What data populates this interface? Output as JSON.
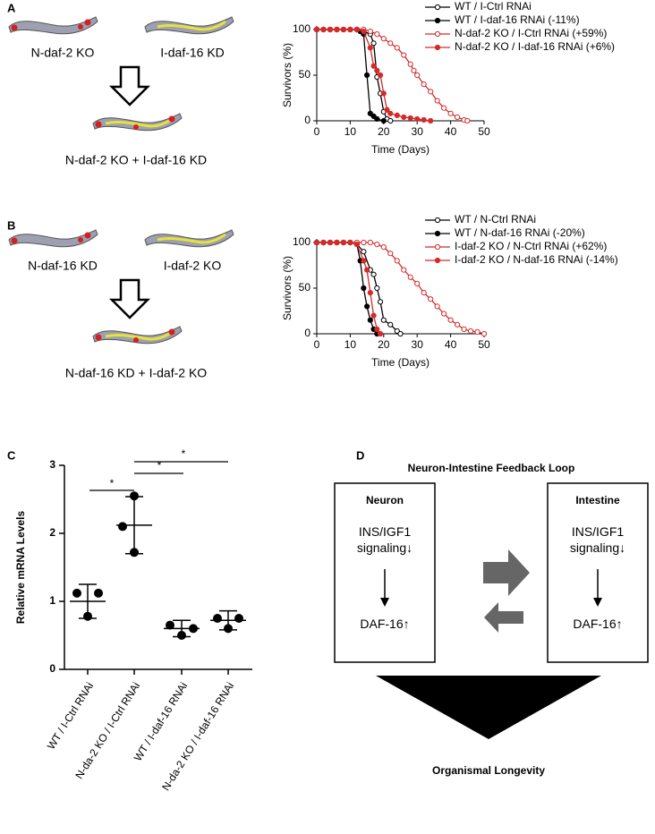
{
  "schematic_A": {
    "panel_label": "A",
    "left": "N-daf-2 KO",
    "right": "I-daf-16 KD",
    "combined": "N-daf-2 KO + I-daf-16 KD"
  },
  "schematic_B": {
    "panel_label": "B",
    "left": "N-daf-16 KD",
    "right": "I-daf-2 KO",
    "combined": "N-daf-16 KD + I-daf-2 KO"
  },
  "chart_data": [
    {
      "type": "survival",
      "xlabel": "Time (Days)",
      "ylabel": "Survivors (%)",
      "xlim": [
        0,
        50
      ],
      "xticks": [
        0,
        10,
        20,
        30,
        40,
        50
      ],
      "ylim": [
        0,
        100
      ],
      "yticks": [
        0,
        50,
        100
      ],
      "series": [
        {
          "name": "WT / I-Ctrl RNAi",
          "color": "#000000",
          "marker": "open",
          "x": [
            0,
            2,
            4,
            6,
            8,
            10,
            12,
            14,
            16,
            17,
            18,
            19,
            20,
            21,
            22
          ],
          "values": [
            100,
            100,
            100,
            100,
            100,
            100,
            100,
            98,
            95,
            85,
            48,
            30,
            10,
            2,
            0
          ]
        },
        {
          "name": "WT / I-daf-16 RNAi (-11%)",
          "color": "#000000",
          "marker": "filled",
          "x": [
            0,
            2,
            4,
            6,
            8,
            10,
            12,
            13,
            14,
            15,
            16,
            17,
            18,
            20
          ],
          "values": [
            100,
            100,
            100,
            100,
            100,
            100,
            100,
            98,
            95,
            50,
            8,
            5,
            2,
            0
          ]
        },
        {
          "name": "N-daf-2 KO / I-Ctrl RNAi (+59%)",
          "color": "#d42a2a",
          "marker": "open",
          "x": [
            0,
            2,
            4,
            6,
            8,
            10,
            12,
            14,
            16,
            18,
            20,
            22,
            24,
            26,
            28,
            29,
            30,
            32,
            34,
            36,
            38,
            40,
            42,
            44,
            45
          ],
          "values": [
            100,
            100,
            100,
            100,
            100,
            100,
            100,
            100,
            98,
            95,
            90,
            85,
            80,
            72,
            62,
            55,
            50,
            40,
            32,
            22,
            14,
            8,
            4,
            1,
            0
          ]
        },
        {
          "name": "N-daf-2 KO / I-daf-16 RNAi (+6%)",
          "color": "#d42a2a",
          "marker": "filled",
          "x": [
            0,
            2,
            4,
            6,
            8,
            10,
            12,
            14,
            16,
            17,
            18,
            19,
            20,
            21,
            22,
            24,
            26,
            28,
            30,
            32,
            34
          ],
          "values": [
            100,
            100,
            100,
            100,
            100,
            100,
            100,
            98,
            80,
            60,
            55,
            50,
            30,
            12,
            8,
            6,
            4,
            3,
            2,
            1,
            0
          ]
        }
      ]
    },
    {
      "type": "survival",
      "xlabel": "Time (Days)",
      "ylabel": "Survivors (%)",
      "xlim": [
        0,
        50
      ],
      "xticks": [
        0,
        10,
        20,
        30,
        40,
        50
      ],
      "ylim": [
        0,
        100
      ],
      "yticks": [
        0,
        50,
        100
      ],
      "series": [
        {
          "name": "WT / N-Ctrl RNAi",
          "color": "#000000",
          "marker": "open",
          "x": [
            0,
            2,
            4,
            6,
            8,
            10,
            12,
            14,
            16,
            17,
            18,
            19,
            20,
            22,
            24,
            25
          ],
          "values": [
            100,
            100,
            100,
            100,
            100,
            100,
            98,
            90,
            70,
            65,
            50,
            35,
            15,
            10,
            3,
            0
          ]
        },
        {
          "name": "WT / N-daf-16 RNAi (-20%)",
          "color": "#000000",
          "marker": "filled",
          "x": [
            0,
            2,
            4,
            6,
            8,
            10,
            12,
            13,
            14,
            15,
            16,
            17,
            18
          ],
          "values": [
            100,
            100,
            100,
            100,
            100,
            100,
            98,
            80,
            50,
            30,
            15,
            5,
            0
          ]
        },
        {
          "name": "I-daf-2 KO / N-Ctrl RNAi (+62%)",
          "color": "#d42a2a",
          "marker": "open",
          "x": [
            0,
            2,
            4,
            6,
            8,
            10,
            12,
            14,
            16,
            18,
            20,
            22,
            24,
            26,
            28,
            30,
            32,
            34,
            36,
            38,
            40,
            42,
            44,
            46,
            48,
            50
          ],
          "values": [
            100,
            100,
            100,
            100,
            100,
            100,
            100,
            100,
            100,
            98,
            95,
            88,
            80,
            70,
            62,
            55,
            45,
            38,
            30,
            22,
            15,
            10,
            5,
            3,
            2,
            0
          ]
        },
        {
          "name": "I-daf-2 KO / N-daf-16 RNAi (-14%)",
          "color": "#d42a2a",
          "marker": "filled",
          "x": [
            0,
            2,
            4,
            6,
            8,
            10,
            12,
            14,
            15,
            16,
            17,
            18,
            19
          ],
          "values": [
            100,
            100,
            100,
            100,
            100,
            100,
            98,
            80,
            70,
            45,
            20,
            5,
            0
          ]
        }
      ]
    },
    {
      "type": "dot",
      "panel_label": "C",
      "ylabel": "Relative mRNA Levels",
      "categories": [
        "WT / I-Ctrl RNAi",
        "N-da-2 KO / I-Ctrl RNAi",
        "WT / I-daf-16 RNAi",
        "N-da-2 KO / I-daf-16 RNAi"
      ],
      "ylim": [
        0,
        3
      ],
      "yticks": [
        0,
        1,
        2,
        3
      ],
      "color": "#000000",
      "points": [
        [
          1.12,
          1.12,
          0.78
        ],
        [
          2.55,
          2.1,
          1.72
        ],
        [
          0.65,
          0.6,
          0.5
        ],
        [
          0.75,
          0.75,
          0.6
        ]
      ],
      "values": [
        1.0,
        2.12,
        0.6,
        0.72
      ],
      "errors": [
        0.25,
        0.42,
        0.12,
        0.14
      ],
      "annotations": [
        "*",
        "*",
        "*"
      ]
    }
  ],
  "panel_D": {
    "panel_label": "D",
    "title": "Neuron-Intestine Feedback Loop",
    "left_box": {
      "title": "Neuron",
      "signal": "INS/IGF1 signaling↓",
      "output": "DAF-16↑"
    },
    "right_box": {
      "title": "Intestine",
      "signal": "INS/IGF1 signaling↓",
      "output": "DAF-16↑"
    },
    "outcome": "Organismal Longevity"
  }
}
